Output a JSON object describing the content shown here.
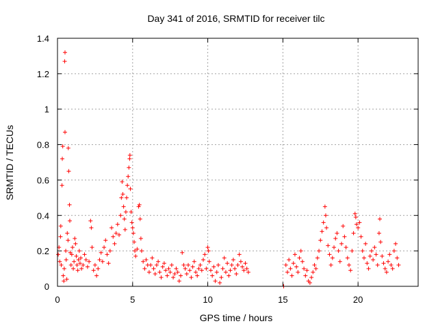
{
  "chart_data": {
    "type": "scatter",
    "title": "Day 341 of 2016, SRMTID for receiver tilc",
    "xlabel": "GPS time / hours",
    "ylabel": "SRMTID / TECUs",
    "xlim": [
      0,
      24
    ],
    "ylim": [
      0,
      1.4
    ],
    "x_ticks": [
      0,
      5,
      10,
      15,
      20
    ],
    "x_tick_labels": [
      "0",
      "5",
      "10",
      "15",
      "20"
    ],
    "y_ticks": [
      0,
      0.2,
      0.4,
      0.6,
      0.8,
      1,
      1.2,
      1.4
    ],
    "y_tick_labels": [
      "0",
      "0.2",
      "0.4",
      "0.6",
      "0.8",
      "1",
      "1.2",
      "1.4"
    ],
    "grid": true,
    "marker": "+",
    "color": "#ff0000",
    "series": [
      {
        "name": "SRMTID",
        "points": [
          [
            0.05,
            0.18
          ],
          [
            0.1,
            0.22
          ],
          [
            0.15,
            0.14
          ],
          [
            0.2,
            0.28
          ],
          [
            0.22,
            0.34
          ],
          [
            0.25,
            0.12
          ],
          [
            0.3,
            0.57
          ],
          [
            0.32,
            0.72
          ],
          [
            0.35,
            0.79
          ],
          [
            0.38,
            0.06
          ],
          [
            0.42,
            0.03
          ],
          [
            0.45,
            0.1
          ],
          [
            0.48,
            1.27
          ],
          [
            0.5,
            1.32
          ],
          [
            0.5,
            0.87
          ],
          [
            0.55,
            0.2
          ],
          [
            0.58,
            0.15
          ],
          [
            0.62,
            0.04
          ],
          [
            0.65,
            0.3
          ],
          [
            0.7,
            0.26
          ],
          [
            0.72,
            0.78
          ],
          [
            0.75,
            0.65
          ],
          [
            0.8,
            0.46
          ],
          [
            0.82,
            0.37
          ],
          [
            0.85,
            0.19
          ],
          [
            0.9,
            0.12
          ],
          [
            0.95,
            0.18
          ],
          [
            1.0,
            0.22
          ],
          [
            1.05,
            0.1
          ],
          [
            1.1,
            0.14
          ],
          [
            1.15,
            0.27
          ],
          [
            1.2,
            0.24
          ],
          [
            1.25,
            0.17
          ],
          [
            1.3,
            0.12
          ],
          [
            1.35,
            0.09
          ],
          [
            1.4,
            0.15
          ],
          [
            1.45,
            0.2
          ],
          [
            1.5,
            0.13
          ],
          [
            1.55,
            0.16
          ],
          [
            1.6,
            0.1
          ],
          [
            1.7,
            0.12
          ],
          [
            1.8,
            0.18
          ],
          [
            1.9,
            0.15
          ],
          [
            2.0,
            0.11
          ],
          [
            2.1,
            0.14
          ],
          [
            2.2,
            0.37
          ],
          [
            2.25,
            0.33
          ],
          [
            2.3,
            0.22
          ],
          [
            2.4,
            0.09
          ],
          [
            2.5,
            0.12
          ],
          [
            2.6,
            0.06
          ],
          [
            2.7,
            0.1
          ],
          [
            2.8,
            0.15
          ],
          [
            2.9,
            0.19
          ],
          [
            3.0,
            0.14
          ],
          [
            3.1,
            0.22
          ],
          [
            3.2,
            0.26
          ],
          [
            3.3,
            0.18
          ],
          [
            3.4,
            0.13
          ],
          [
            3.5,
            0.2
          ],
          [
            3.6,
            0.33
          ],
          [
            3.7,
            0.28
          ],
          [
            3.8,
            0.24
          ],
          [
            3.9,
            0.3
          ],
          [
            4.0,
            0.35
          ],
          [
            4.1,
            0.29
          ],
          [
            4.2,
            0.4
          ],
          [
            4.25,
            0.5
          ],
          [
            4.3,
            0.59
          ],
          [
            4.35,
            0.52
          ],
          [
            4.4,
            0.45
          ],
          [
            4.45,
            0.38
          ],
          [
            4.5,
            0.32
          ],
          [
            4.55,
            0.42
          ],
          [
            4.6,
            0.5
          ],
          [
            4.65,
            0.57
          ],
          [
            4.7,
            0.62
          ],
          [
            4.75,
            0.67
          ],
          [
            4.8,
            0.72
          ],
          [
            4.82,
            0.74
          ],
          [
            4.85,
            0.55
          ],
          [
            4.9,
            0.42
          ],
          [
            4.95,
            0.36
          ],
          [
            5.0,
            0.33
          ],
          [
            5.05,
            0.3
          ],
          [
            5.1,
            0.25
          ],
          [
            5.15,
            0.2
          ],
          [
            5.2,
            0.17
          ],
          [
            5.3,
            0.21
          ],
          [
            5.4,
            0.45
          ],
          [
            5.45,
            0.46
          ],
          [
            5.5,
            0.38
          ],
          [
            5.55,
            0.27
          ],
          [
            5.6,
            0.2
          ],
          [
            5.7,
            0.14
          ],
          [
            5.8,
            0.1
          ],
          [
            5.9,
            0.15
          ],
          [
            6.0,
            0.12
          ],
          [
            6.1,
            0.08
          ],
          [
            6.2,
            0.12
          ],
          [
            6.3,
            0.16
          ],
          [
            6.4,
            0.1
          ],
          [
            6.5,
            0.07
          ],
          [
            6.6,
            0.12
          ],
          [
            6.7,
            0.14
          ],
          [
            6.8,
            0.08
          ],
          [
            6.9,
            0.05
          ],
          [
            7.0,
            0.11
          ],
          [
            7.1,
            0.13
          ],
          [
            7.2,
            0.09
          ],
          [
            7.3,
            0.06
          ],
          [
            7.4,
            0.1
          ],
          [
            7.5,
            0.08
          ],
          [
            7.6,
            0.12
          ],
          [
            7.7,
            0.05
          ],
          [
            7.8,
            0.07
          ],
          [
            7.9,
            0.1
          ],
          [
            8.0,
            0.08
          ],
          [
            8.1,
            0.03
          ],
          [
            8.2,
            0.06
          ],
          [
            8.3,
            0.19
          ],
          [
            8.4,
            0.12
          ],
          [
            8.5,
            0.1
          ],
          [
            8.6,
            0.07
          ],
          [
            8.7,
            0.12
          ],
          [
            8.8,
            0.09
          ],
          [
            8.9,
            0.05
          ],
          [
            9.0,
            0.11
          ],
          [
            9.1,
            0.14
          ],
          [
            9.2,
            0.08
          ],
          [
            9.3,
            0.06
          ],
          [
            9.4,
            0.1
          ],
          [
            9.5,
            0.12
          ],
          [
            9.6,
            0.09
          ],
          [
            9.7,
            0.15
          ],
          [
            9.8,
            0.18
          ],
          [
            9.9,
            0.1
          ],
          [
            10.0,
            0.22
          ],
          [
            10.05,
            0.2
          ],
          [
            10.1,
            0.14
          ],
          [
            10.2,
            0.09
          ],
          [
            10.3,
            0.06
          ],
          [
            10.4,
            0.11
          ],
          [
            10.5,
            0.03
          ],
          [
            10.6,
            0.08
          ],
          [
            10.7,
            0.12
          ],
          [
            10.8,
            0.02
          ],
          [
            10.9,
            0.05
          ],
          [
            11.0,
            0.1
          ],
          [
            11.1,
            0.16
          ],
          [
            11.2,
            0.08
          ],
          [
            11.3,
            0.13
          ],
          [
            11.4,
            0.06
          ],
          [
            11.5,
            0.09
          ],
          [
            11.6,
            0.12
          ],
          [
            11.7,
            0.15
          ],
          [
            11.8,
            0.1
          ],
          [
            11.9,
            0.07
          ],
          [
            12.0,
            0.12
          ],
          [
            12.1,
            0.18
          ],
          [
            12.2,
            0.14
          ],
          [
            12.3,
            0.11
          ],
          [
            12.4,
            0.09
          ],
          [
            12.5,
            0.13
          ],
          [
            12.6,
            0.1
          ],
          [
            12.7,
            0.08
          ],
          [
            15.05,
            0.0
          ],
          [
            15.2,
            0.12
          ],
          [
            15.3,
            0.08
          ],
          [
            15.4,
            0.15
          ],
          [
            15.5,
            0.1
          ],
          [
            15.6,
            0.06
          ],
          [
            15.7,
            0.13
          ],
          [
            15.8,
            0.18
          ],
          [
            15.9,
            0.11
          ],
          [
            16.0,
            0.08
          ],
          [
            16.1,
            0.16
          ],
          [
            16.2,
            0.2
          ],
          [
            16.3,
            0.14
          ],
          [
            16.4,
            0.1
          ],
          [
            16.5,
            0.06
          ],
          [
            16.6,
            0.09
          ],
          [
            16.7,
            0.03
          ],
          [
            16.8,
            0.02
          ],
          [
            16.9,
            0.05
          ],
          [
            17.0,
            0.08
          ],
          [
            17.1,
            0.12
          ],
          [
            17.2,
            0.1
          ],
          [
            17.3,
            0.16
          ],
          [
            17.4,
            0.2
          ],
          [
            17.5,
            0.26
          ],
          [
            17.6,
            0.31
          ],
          [
            17.7,
            0.36
          ],
          [
            17.8,
            0.45
          ],
          [
            17.85,
            0.4
          ],
          [
            17.9,
            0.33
          ],
          [
            18.0,
            0.23
          ],
          [
            18.1,
            0.18
          ],
          [
            18.2,
            0.12
          ],
          [
            18.3,
            0.16
          ],
          [
            18.4,
            0.22
          ],
          [
            18.5,
            0.27
          ],
          [
            18.6,
            0.3
          ],
          [
            18.7,
            0.2
          ],
          [
            18.8,
            0.14
          ],
          [
            18.9,
            0.24
          ],
          [
            19.0,
            0.34
          ],
          [
            19.1,
            0.28
          ],
          [
            19.2,
            0.22
          ],
          [
            19.3,
            0.16
          ],
          [
            19.4,
            0.12
          ],
          [
            19.5,
            0.09
          ],
          [
            19.6,
            0.2
          ],
          [
            19.7,
            0.3
          ],
          [
            19.8,
            0.41
          ],
          [
            19.85,
            0.39
          ],
          [
            19.9,
            0.35
          ],
          [
            20.0,
            0.33
          ],
          [
            20.1,
            0.36
          ],
          [
            20.2,
            0.28
          ],
          [
            20.3,
            0.2
          ],
          [
            20.4,
            0.16
          ],
          [
            20.5,
            0.24
          ],
          [
            20.6,
            0.13
          ],
          [
            20.7,
            0.1
          ],
          [
            20.8,
            0.17
          ],
          [
            20.9,
            0.2
          ],
          [
            21.0,
            0.15
          ],
          [
            21.1,
            0.22
          ],
          [
            21.2,
            0.18
          ],
          [
            21.3,
            0.12
          ],
          [
            21.4,
            0.3
          ],
          [
            21.45,
            0.38
          ],
          [
            21.5,
            0.25
          ],
          [
            21.6,
            0.17
          ],
          [
            21.7,
            0.13
          ],
          [
            21.8,
            0.1
          ],
          [
            21.9,
            0.08
          ],
          [
            22.0,
            0.14
          ],
          [
            22.1,
            0.18
          ],
          [
            22.2,
            0.12
          ],
          [
            22.3,
            0.1
          ],
          [
            22.4,
            0.2
          ],
          [
            22.5,
            0.24
          ],
          [
            22.6,
            0.16
          ],
          [
            22.7,
            0.12
          ]
        ]
      }
    ]
  }
}
